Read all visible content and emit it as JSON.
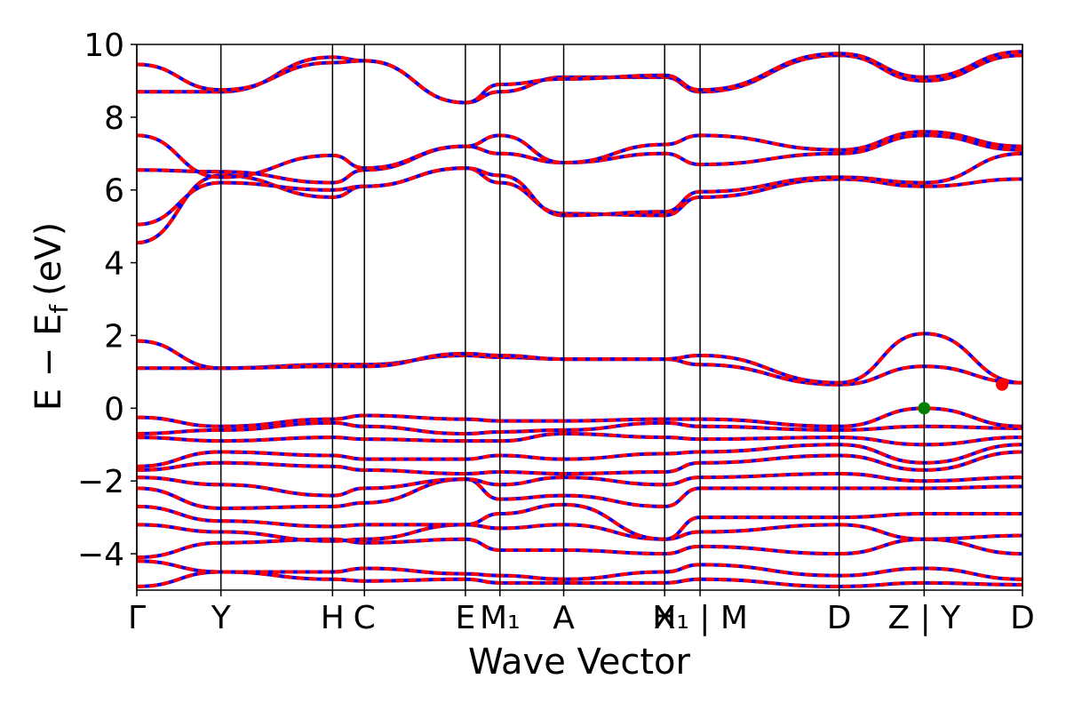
{
  "chart_data": {
    "type": "line",
    "title": "",
    "xlabel": "Wave Vector",
    "ylabel": "E − E_f (eV)",
    "ylabel_parts": {
      "main": "E − E",
      "sub": "f",
      "unit": "(eV)"
    },
    "ylim": [
      -5,
      10
    ],
    "yticks": [
      {
        "value": 10,
        "label": "10"
      },
      {
        "value": 8,
        "label": "8"
      },
      {
        "value": 6,
        "label": "6"
      },
      {
        "value": 4,
        "label": "4"
      },
      {
        "value": 2,
        "label": "2"
      },
      {
        "value": 0,
        "label": "0"
      },
      {
        "value": -2,
        "label": "−2"
      },
      {
        "value": -4,
        "label": "−4"
      }
    ],
    "xlim": [
      0,
      1
    ],
    "kpoints": [
      {
        "x": 0.0,
        "label": "Γ"
      },
      {
        "x": 0.095,
        "label": "Y"
      },
      {
        "x": 0.221,
        "label": "H"
      },
      {
        "x": 0.257,
        "label": "C"
      },
      {
        "x": 0.371,
        "label": "E"
      },
      {
        "x": 0.41,
        "label": "M₁"
      },
      {
        "x": 0.482,
        "label": "A"
      },
      {
        "x": 0.596,
        "label": "X"
      },
      {
        "x": 0.636,
        "label": "H₁ | M"
      },
      {
        "x": 0.793,
        "label": "D"
      },
      {
        "x": 0.889,
        "label": "Z | Y"
      },
      {
        "x": 1.0,
        "label": "D"
      }
    ],
    "grid": false,
    "legend": "none",
    "series_colors": {
      "band_solid": "#0000ff",
      "band_dashed": "#ff0000"
    },
    "special_points": [
      {
        "name": "valence-band-maximum",
        "x": 0.889,
        "y": 0.0,
        "color": "#008000"
      },
      {
        "name": "conduction-band-minimum",
        "x": 0.977,
        "y": 0.65,
        "color": "#ff0000"
      }
    ],
    "bands": [
      [
        [
          0,
          -4.9
        ],
        [
          0.095,
          -4.5
        ],
        [
          0.221,
          -4.7
        ],
        [
          0.257,
          -4.75
        ],
        [
          0.371,
          -4.7
        ],
        [
          0.41,
          -4.8
        ],
        [
          0.482,
          -4.8
        ],
        [
          0.596,
          -4.8
        ],
        [
          0.636,
          -4.7
        ],
        [
          0.793,
          -4.9
        ],
        [
          0.889,
          -4.8
        ],
        [
          1,
          -4.85
        ]
      ],
      [
        [
          0,
          -4.2
        ],
        [
          0.095,
          -4.5
        ],
        [
          0.221,
          -4.5
        ],
        [
          0.257,
          -4.4
        ],
        [
          0.371,
          -4.55
        ],
        [
          0.41,
          -4.6
        ],
        [
          0.482,
          -4.7
        ],
        [
          0.596,
          -4.5
        ],
        [
          0.636,
          -4.3
        ],
        [
          0.793,
          -4.6
        ],
        [
          0.889,
          -4.4
        ],
        [
          1,
          -4.7
        ]
      ],
      [
        [
          0,
          -4.1
        ],
        [
          0.095,
          -3.7
        ],
        [
          0.221,
          -3.6
        ],
        [
          0.257,
          -3.7
        ],
        [
          0.371,
          -3.6
        ],
        [
          0.41,
          -3.9
        ],
        [
          0.482,
          -3.9
        ],
        [
          0.596,
          -4.0
        ],
        [
          0.636,
          -3.8
        ],
        [
          0.793,
          -4.0
        ],
        [
          0.889,
          -3.6
        ],
        [
          1,
          -4.0
        ]
      ],
      [
        [
          0,
          -3.2
        ],
        [
          0.095,
          -3.4
        ],
        [
          0.221,
          -3.65
        ],
        [
          0.257,
          -3.6
        ],
        [
          0.371,
          -3.2
        ],
        [
          0.41,
          -3.3
        ],
        [
          0.482,
          -3.2
        ],
        [
          0.596,
          -3.6
        ],
        [
          0.636,
          -3.4
        ],
        [
          0.793,
          -3.2
        ],
        [
          0.889,
          -3.6
        ],
        [
          1,
          -3.5
        ]
      ],
      [
        [
          0,
          -2.7
        ],
        [
          0.095,
          -3.1
        ],
        [
          0.221,
          -3.25
        ],
        [
          0.257,
          -3.2
        ],
        [
          0.371,
          -3.2
        ],
        [
          0.41,
          -2.9
        ],
        [
          0.482,
          -2.65
        ],
        [
          0.596,
          -3.6
        ],
        [
          0.636,
          -3.0
        ],
        [
          0.793,
          -3.0
        ],
        [
          0.889,
          -2.9
        ],
        [
          1,
          -2.9
        ]
      ],
      [
        [
          0,
          -2.2
        ],
        [
          0.095,
          -2.75
        ],
        [
          0.221,
          -2.7
        ],
        [
          0.257,
          -2.6
        ],
        [
          0.371,
          -1.95
        ],
        [
          0.41,
          -2.5
        ],
        [
          0.482,
          -2.4
        ],
        [
          0.596,
          -2.7
        ],
        [
          0.636,
          -2.2
        ],
        [
          0.793,
          -2.2
        ],
        [
          0.889,
          -2.2
        ],
        [
          1,
          -2.15
        ]
      ],
      [
        [
          0,
          -1.9
        ],
        [
          0.095,
          -2.1
        ],
        [
          0.221,
          -2.4
        ],
        [
          0.257,
          -2.2
        ],
        [
          0.371,
          -1.95
        ],
        [
          0.41,
          -2.1
        ],
        [
          0.482,
          -1.9
        ],
        [
          0.596,
          -2.1
        ],
        [
          0.636,
          -1.9
        ],
        [
          0.793,
          -1.8
        ],
        [
          0.889,
          -2.0
        ],
        [
          1,
          -1.9
        ]
      ],
      [
        [
          0,
          -1.7
        ],
        [
          0.095,
          -1.5
        ],
        [
          0.221,
          -1.6
        ],
        [
          0.257,
          -1.7
        ],
        [
          0.371,
          -1.8
        ],
        [
          0.41,
          -1.75
        ],
        [
          0.482,
          -1.8
        ],
        [
          0.596,
          -1.75
        ],
        [
          0.636,
          -1.5
        ],
        [
          0.793,
          -1.3
        ],
        [
          0.889,
          -1.7
        ],
        [
          1,
          -1.2
        ]
      ],
      [
        [
          0,
          -1.6
        ],
        [
          0.095,
          -1.2
        ],
        [
          0.221,
          -1.3
        ],
        [
          0.257,
          -1.4
        ],
        [
          0.371,
          -1.4
        ],
        [
          0.41,
          -1.3
        ],
        [
          0.482,
          -1.4
        ],
        [
          0.596,
          -1.25
        ],
        [
          0.636,
          -1.2
        ],
        [
          0.793,
          -1.0
        ],
        [
          0.889,
          -1.5
        ],
        [
          1,
          -1.0
        ]
      ],
      [
        [
          0,
          -0.8
        ],
        [
          0.095,
          -0.9
        ],
        [
          0.221,
          -0.8
        ],
        [
          0.257,
          -0.85
        ],
        [
          0.371,
          -0.9
        ],
        [
          0.41,
          -0.9
        ],
        [
          0.482,
          -0.7
        ],
        [
          0.596,
          -0.8
        ],
        [
          0.636,
          -0.85
        ],
        [
          0.793,
          -0.8
        ],
        [
          0.889,
          -1.0
        ],
        [
          1,
          -0.8
        ]
      ],
      [
        [
          0,
          -0.7
        ],
        [
          0.095,
          -0.6
        ],
        [
          0.221,
          -0.4
        ],
        [
          0.257,
          -0.5
        ],
        [
          0.371,
          -0.7
        ],
        [
          0.41,
          -0.65
        ],
        [
          0.482,
          -0.6
        ],
        [
          0.596,
          -0.4
        ],
        [
          0.636,
          -0.5
        ],
        [
          0.793,
          -0.6
        ],
        [
          0.889,
          -0.5
        ],
        [
          1,
          -0.55
        ]
      ],
      [
        [
          0,
          -0.25
        ],
        [
          0.095,
          -0.5
        ],
        [
          0.221,
          -0.3
        ],
        [
          0.257,
          -0.2
        ],
        [
          0.371,
          -0.3
        ],
        [
          0.41,
          -0.35
        ],
        [
          0.482,
          -0.35
        ],
        [
          0.596,
          -0.3
        ],
        [
          0.636,
          -0.3
        ],
        [
          0.793,
          -0.5
        ],
        [
          0.889,
          0.0
        ],
        [
          1,
          -0.5
        ]
      ],
      [
        [
          0,
          1.1
        ],
        [
          0.095,
          1.1
        ],
        [
          0.221,
          1.2
        ],
        [
          0.257,
          1.2
        ],
        [
          0.371,
          1.45
        ],
        [
          0.41,
          1.4
        ],
        [
          0.482,
          1.35
        ],
        [
          0.596,
          1.35
        ],
        [
          0.636,
          1.2
        ],
        [
          0.793,
          0.65
        ],
        [
          0.889,
          1.15
        ],
        [
          1,
          0.7
        ]
      ],
      [
        [
          0,
          1.85
        ],
        [
          0.095,
          1.1
        ],
        [
          0.221,
          1.15
        ],
        [
          0.257,
          1.15
        ],
        [
          0.371,
          1.5
        ],
        [
          0.41,
          1.45
        ],
        [
          0.482,
          1.35
        ],
        [
          0.596,
          1.35
        ],
        [
          0.636,
          1.45
        ],
        [
          0.793,
          0.7
        ],
        [
          0.889,
          2.05
        ],
        [
          1,
          0.7
        ]
      ],
      [
        [
          0,
          4.55
        ],
        [
          0.095,
          6.4
        ],
        [
          0.221,
          5.8
        ],
        [
          0.257,
          6.1
        ],
        [
          0.371,
          6.6
        ],
        [
          0.41,
          6.2
        ],
        [
          0.482,
          5.35
        ],
        [
          0.596,
          5.3
        ],
        [
          0.636,
          5.8
        ],
        [
          0.793,
          6.3
        ],
        [
          0.889,
          6.1
        ],
        [
          1,
          6.3
        ]
      ],
      [
        [
          0,
          5.05
        ],
        [
          0.095,
          6.2
        ],
        [
          0.221,
          6.0
        ],
        [
          0.257,
          6.1
        ],
        [
          0.371,
          6.6
        ],
        [
          0.41,
          6.4
        ],
        [
          0.482,
          5.3
        ],
        [
          0.596,
          5.4
        ],
        [
          0.636,
          5.95
        ],
        [
          0.793,
          6.35
        ],
        [
          0.889,
          6.2
        ],
        [
          1,
          7.0
        ]
      ],
      [
        [
          0,
          6.55
        ],
        [
          0.095,
          6.5
        ],
        [
          0.221,
          6.2
        ],
        [
          0.257,
          6.55
        ],
        [
          0.371,
          7.2
        ],
        [
          0.41,
          7.0
        ],
        [
          0.482,
          6.75
        ],
        [
          0.596,
          7.0
        ],
        [
          0.636,
          6.7
        ],
        [
          0.793,
          7.0
        ],
        [
          0.889,
          7.5
        ],
        [
          1,
          7.1
        ]
      ],
      [
        [
          0,
          7.5
        ],
        [
          0.095,
          6.35
        ],
        [
          0.221,
          6.95
        ],
        [
          0.257,
          6.6
        ],
        [
          0.371,
          7.2
        ],
        [
          0.41,
          7.5
        ],
        [
          0.482,
          6.75
        ],
        [
          0.596,
          7.25
        ],
        [
          0.636,
          7.5
        ],
        [
          0.793,
          7.1
        ],
        [
          0.889,
          7.6
        ],
        [
          1,
          7.2
        ]
      ],
      [
        [
          0,
          8.7
        ],
        [
          0.095,
          8.7
        ],
        [
          0.221,
          9.65
        ],
        [
          0.257,
          9.55
        ],
        [
          0.371,
          8.4
        ],
        [
          0.41,
          8.7
        ],
        [
          0.482,
          9.1
        ],
        [
          0.596,
          9.1
        ],
        [
          0.636,
          8.7
        ],
        [
          0.793,
          9.7
        ],
        [
          0.889,
          9.0
        ],
        [
          1,
          9.7
        ]
      ],
      [
        [
          0,
          9.45
        ],
        [
          0.095,
          8.75
        ],
        [
          0.221,
          9.5
        ],
        [
          0.257,
          9.55
        ],
        [
          0.371,
          8.4
        ],
        [
          0.41,
          8.9
        ],
        [
          0.482,
          9.05
        ],
        [
          0.596,
          9.15
        ],
        [
          0.636,
          8.75
        ],
        [
          0.793,
          9.75
        ],
        [
          0.889,
          9.1
        ],
        [
          1,
          9.8
        ]
      ]
    ]
  }
}
